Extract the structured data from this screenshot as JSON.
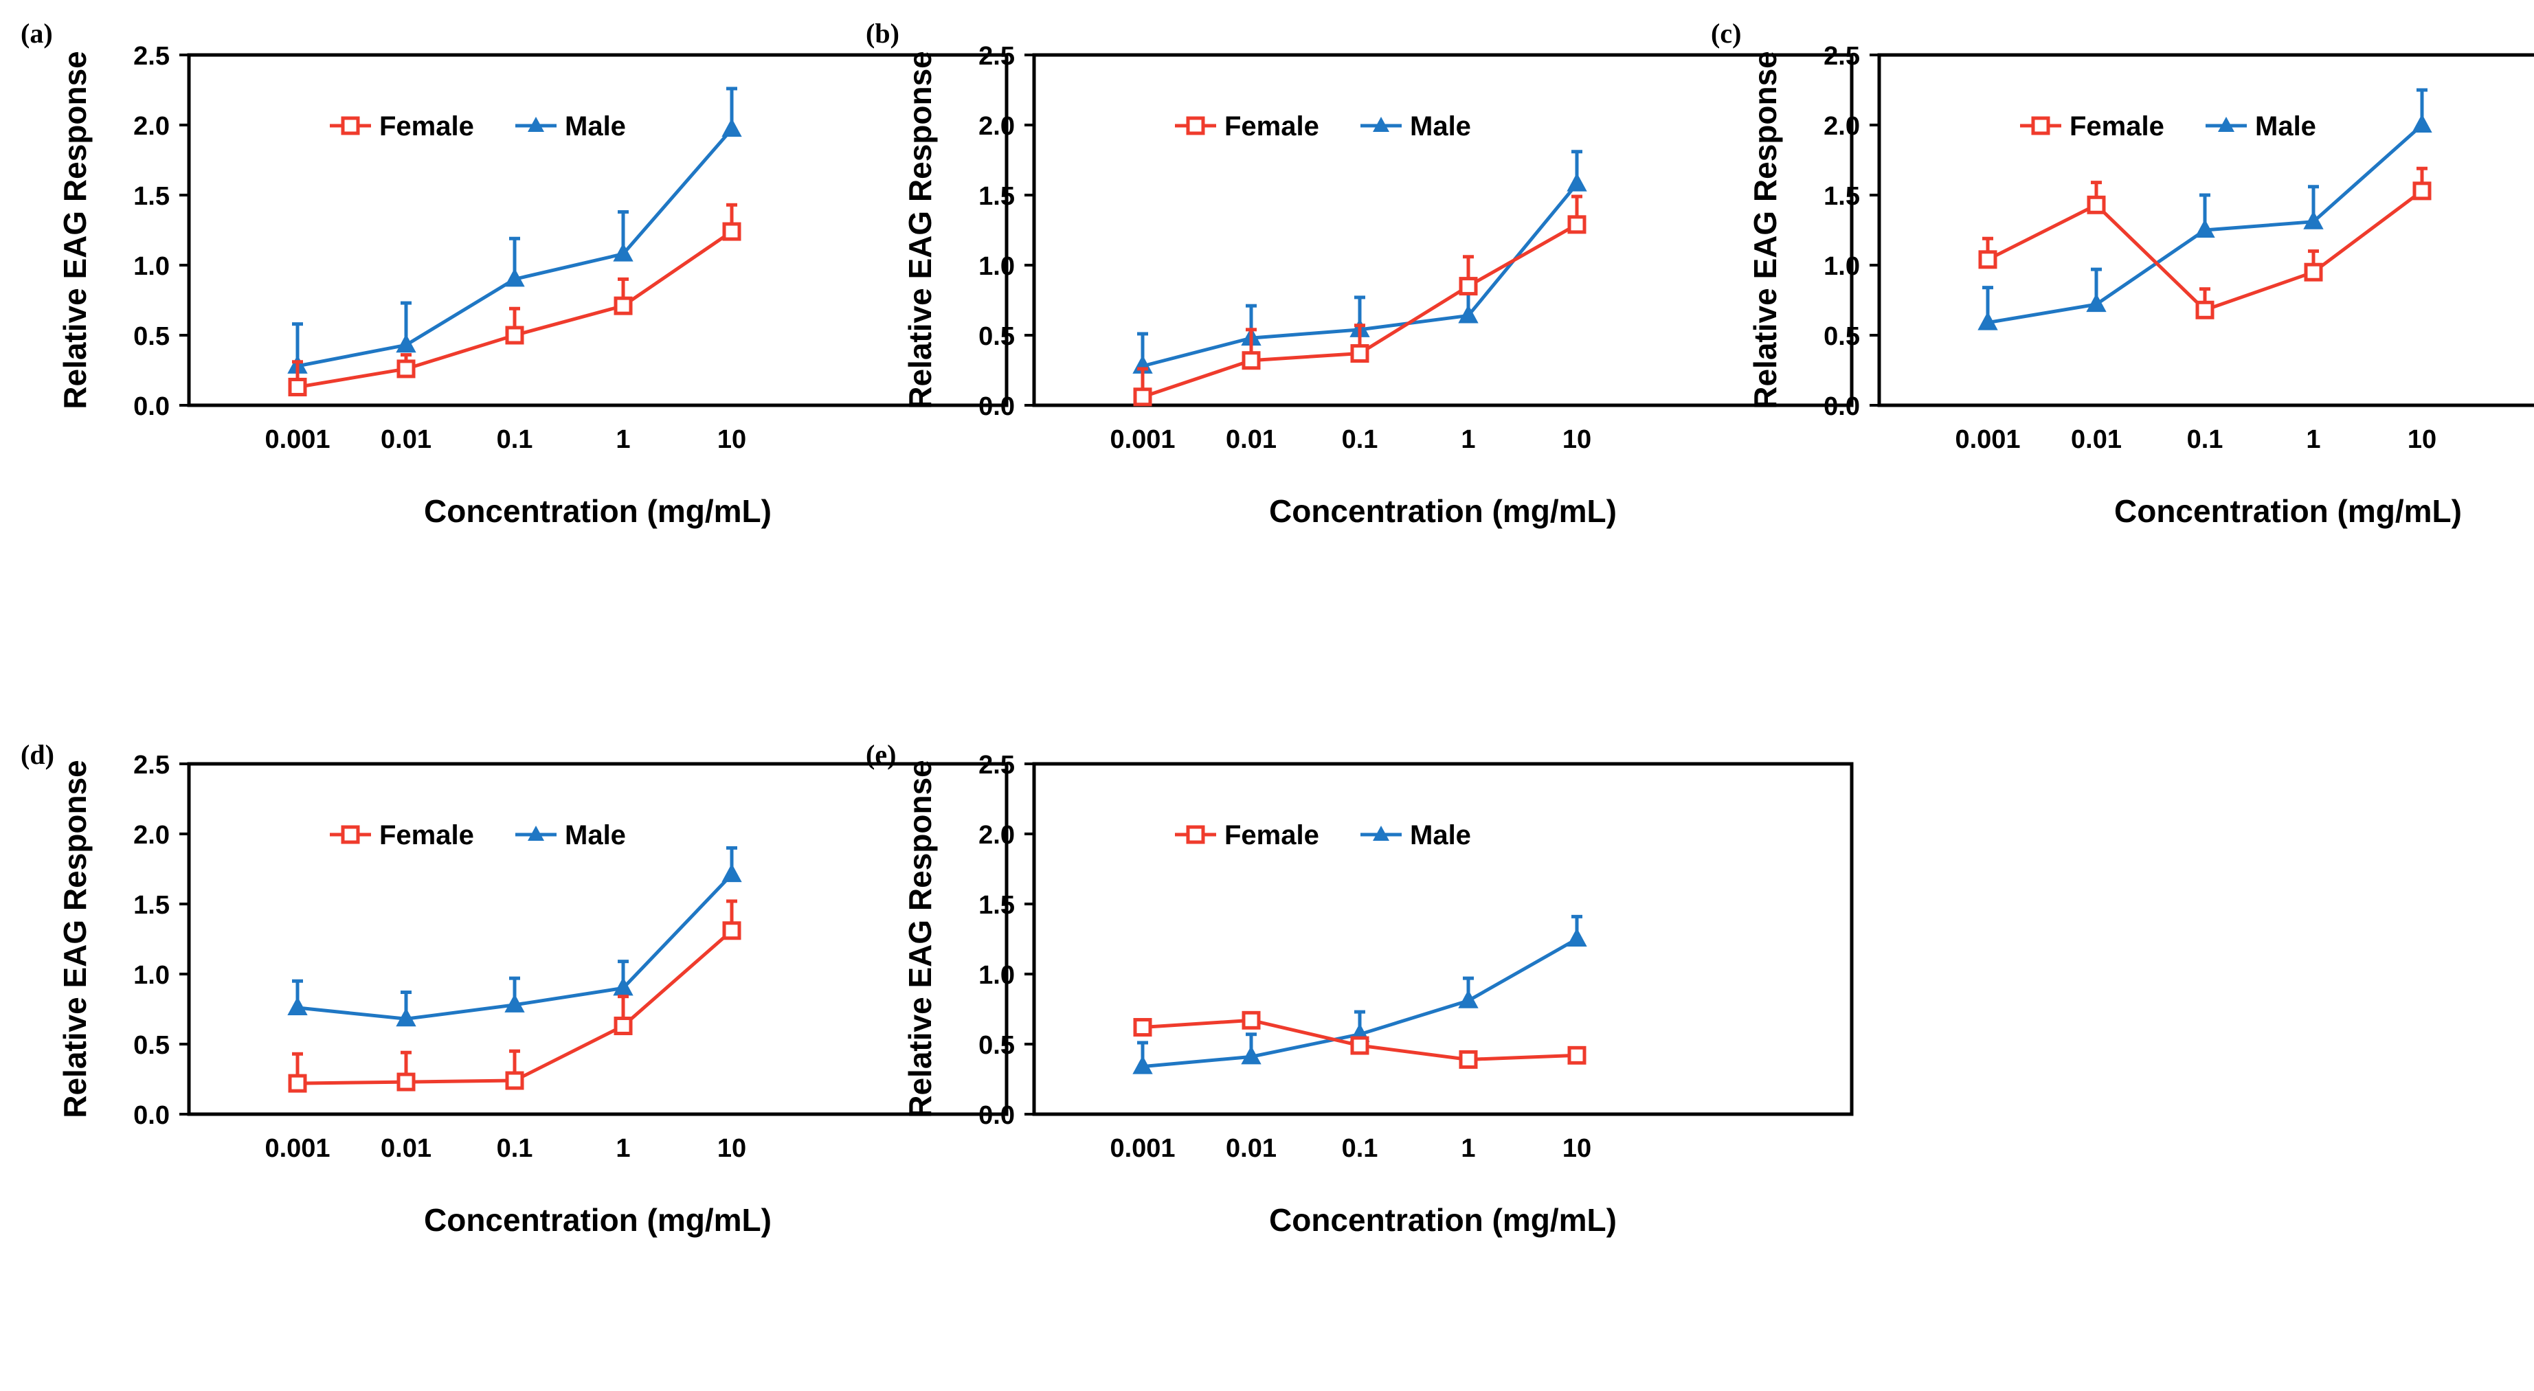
{
  "colors": {
    "female": "#ef3b2c",
    "male": "#1f77c4",
    "axis": "#000000",
    "text": "#000000"
  },
  "chart_data": [
    {
      "type": "line",
      "panel": "(a)",
      "categories": [
        "0.001",
        "0.01",
        "0.1",
        "1",
        "10"
      ],
      "xlabel": "Concentration (mg/mL)",
      "ylabel": "Relative EAG Response",
      "ylim": [
        0,
        2.5
      ],
      "yticks": [
        "0.0",
        "0.5",
        "1.0",
        "1.5",
        "2.0",
        "2.5"
      ],
      "legend": "top-center",
      "series": [
        {
          "name": "Female",
          "marker": "open-square",
          "values": [
            0.13,
            0.26,
            0.5,
            0.71,
            1.24
          ],
          "errors": [
            0.18,
            0.1,
            0.19,
            0.19,
            0.19
          ]
        },
        {
          "name": "Male",
          "marker": "filled-triangle",
          "values": [
            0.28,
            0.43,
            0.9,
            1.08,
            1.97
          ],
          "errors": [
            0.3,
            0.3,
            0.29,
            0.3,
            0.29
          ]
        }
      ]
    },
    {
      "type": "line",
      "panel": "(b)",
      "categories": [
        "0.001",
        "0.01",
        "0.1",
        "1",
        "10"
      ],
      "xlabel": "Concentration (mg/mL)",
      "ylabel": "Relative EAG Response",
      "ylim": [
        0,
        2.5
      ],
      "yticks": [
        "0.0",
        "0.5",
        "1.0",
        "1.5",
        "2.0",
        "2.5"
      ],
      "legend": "top-center",
      "series": [
        {
          "name": "Female",
          "marker": "open-square",
          "values": [
            0.06,
            0.32,
            0.37,
            0.85,
            1.29
          ],
          "errors": [
            0.2,
            0.22,
            0.2,
            0.21,
            0.2
          ]
        },
        {
          "name": "Male",
          "marker": "filled-triangle",
          "values": [
            0.28,
            0.48,
            0.54,
            0.64,
            1.58
          ],
          "errors": [
            0.23,
            0.23,
            0.23,
            0.22,
            0.23
          ]
        }
      ]
    },
    {
      "type": "line",
      "panel": "(c)",
      "categories": [
        "0.001",
        "0.01",
        "0.1",
        "1",
        "10"
      ],
      "xlabel": "Concentration (mg/mL)",
      "ylabel": "Relative EAG Response",
      "ylim": [
        0,
        2.5
      ],
      "yticks": [
        "0.0",
        "0.5",
        "1.0",
        "1.5",
        "2.0",
        "2.5"
      ],
      "legend": "top-center",
      "series": [
        {
          "name": "Female",
          "marker": "open-square",
          "values": [
            1.04,
            1.43,
            0.68,
            0.95,
            1.53
          ],
          "errors": [
            0.15,
            0.16,
            0.15,
            0.15,
            0.16
          ]
        },
        {
          "name": "Male",
          "marker": "filled-triangle",
          "values": [
            0.59,
            0.72,
            1.25,
            1.31,
            2.0
          ],
          "errors": [
            0.25,
            0.25,
            0.25,
            0.25,
            0.25
          ]
        }
      ]
    },
    {
      "type": "line",
      "panel": "(d)",
      "categories": [
        "0.001",
        "0.01",
        "0.1",
        "1",
        "10"
      ],
      "xlabel": "Concentration (mg/mL)",
      "ylabel": "Relative EAG Response",
      "ylim": [
        0,
        2.5
      ],
      "yticks": [
        "0.0",
        "0.5",
        "1.0",
        "1.5",
        "2.0",
        "2.5"
      ],
      "legend": "top-center",
      "series": [
        {
          "name": "Female",
          "marker": "open-square",
          "values": [
            0.22,
            0.23,
            0.24,
            0.63,
            1.31
          ],
          "errors": [
            0.21,
            0.21,
            0.21,
            0.21,
            0.21
          ]
        },
        {
          "name": "Male",
          "marker": "filled-triangle",
          "values": [
            0.76,
            0.68,
            0.78,
            0.9,
            1.71
          ],
          "errors": [
            0.19,
            0.19,
            0.19,
            0.19,
            0.19
          ]
        }
      ]
    },
    {
      "type": "line",
      "panel": "(e)",
      "categories": [
        "0.001",
        "0.01",
        "0.1",
        "1",
        "10"
      ],
      "xlabel": "Concentration (mg/mL)",
      "ylabel": "Relative EAG Response",
      "ylim": [
        0,
        2.5
      ],
      "yticks": [
        "0.0",
        "0.5",
        "1.0",
        "1.5",
        "2.0",
        "2.5"
      ],
      "legend": "top-center",
      "series": [
        {
          "name": "Female",
          "marker": "open-square",
          "values": [
            0.62,
            0.67,
            0.49,
            0.39,
            0.42
          ],
          "errors": [
            0.04,
            0.04,
            0.03,
            0.04,
            0.04
          ]
        },
        {
          "name": "Male",
          "marker": "filled-triangle",
          "values": [
            0.34,
            0.41,
            0.57,
            0.81,
            1.25
          ],
          "errors": [
            0.17,
            0.16,
            0.16,
            0.16,
            0.16
          ]
        }
      ]
    }
  ]
}
